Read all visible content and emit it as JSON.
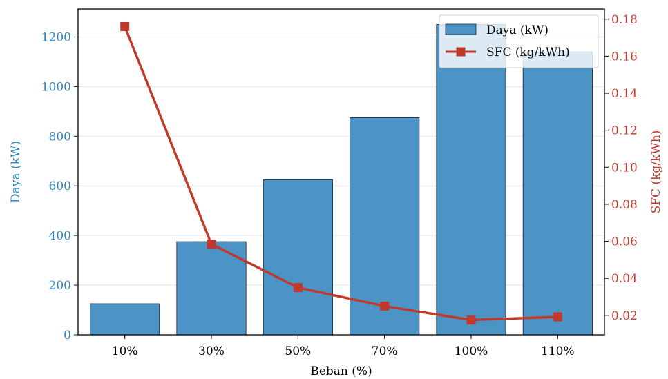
{
  "chart_data": {
    "type": "bar",
    "categories": [
      "10%",
      "30%",
      "50%",
      "70%",
      "100%",
      "110%"
    ],
    "xlabel": "Beban (%)",
    "series": [
      {
        "name": "Daya (kW)",
        "type": "bar",
        "axis": "left",
        "color": "#4c94c6",
        "values": [
          125,
          375,
          625,
          875,
          1250,
          1140
        ]
      },
      {
        "name": "SFC (kg/kWh)",
        "type": "line",
        "axis": "right",
        "color": "#c0392b",
        "values": [
          0.176,
          0.0585,
          0.035,
          0.025,
          0.0175,
          0.0192
        ]
      }
    ],
    "y_left": {
      "label": "Daya (kW)",
      "color": "#2e86c1",
      "ylim": [
        0,
        1312.5
      ],
      "ticks": [
        0,
        200,
        400,
        600,
        800,
        1000,
        1200
      ],
      "tick_labels": [
        "0",
        "200",
        "400",
        "600",
        "800",
        "1000",
        "1200"
      ]
    },
    "y_right": {
      "label": "SFC (kg/kWh)",
      "color": "#c0392b",
      "ylim": [
        0.0095,
        0.1855
      ],
      "ticks": [
        0.02,
        0.04,
        0.06,
        0.08,
        0.1,
        0.12,
        0.14,
        0.16,
        0.18
      ],
      "tick_labels": [
        "0.02",
        "0.04",
        "0.06",
        "0.08",
        "0.10",
        "0.12",
        "0.14",
        "0.16",
        "0.18"
      ]
    },
    "grid": "horizontal",
    "legend": "top-right"
  }
}
